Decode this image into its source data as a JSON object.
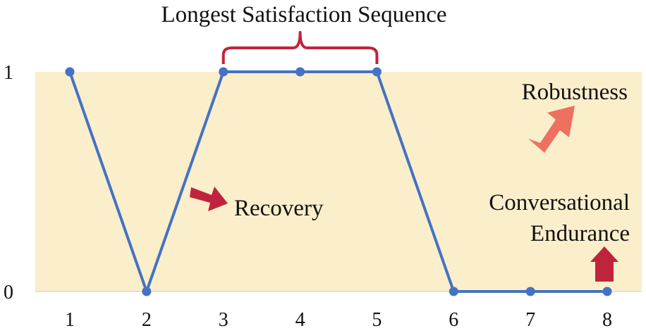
{
  "chart_data": {
    "type": "line",
    "x": [
      1,
      2,
      3,
      4,
      5,
      6,
      7,
      8
    ],
    "series": [
      {
        "values": [
          1,
          0,
          1,
          1,
          1,
          0,
          0,
          0
        ]
      }
    ],
    "xlim": [
      0.55,
      8.45
    ],
    "ylim": [
      0,
      1
    ],
    "y_ticks": [
      "0",
      "1"
    ],
    "x_ticks": [
      "1",
      "2",
      "3",
      "4",
      "5",
      "6",
      "7",
      "8"
    ],
    "grid": false,
    "colors": {
      "line": "#4472C4",
      "band": "#FBEECB",
      "bracket": "#C0243C",
      "recovery_arrow": "#C0243C",
      "robustness_arrow": "#EE7060",
      "endurance_arrow": "#C0243C"
    },
    "annotations": {
      "longest_sequence": {
        "text": "Longest Satisfaction Sequence",
        "from_x": 3,
        "to_x": 5
      },
      "recovery": "Recovery",
      "robustness": "Robustness",
      "endurance_line1": "Conversational",
      "endurance_line2": "Endurance"
    }
  }
}
